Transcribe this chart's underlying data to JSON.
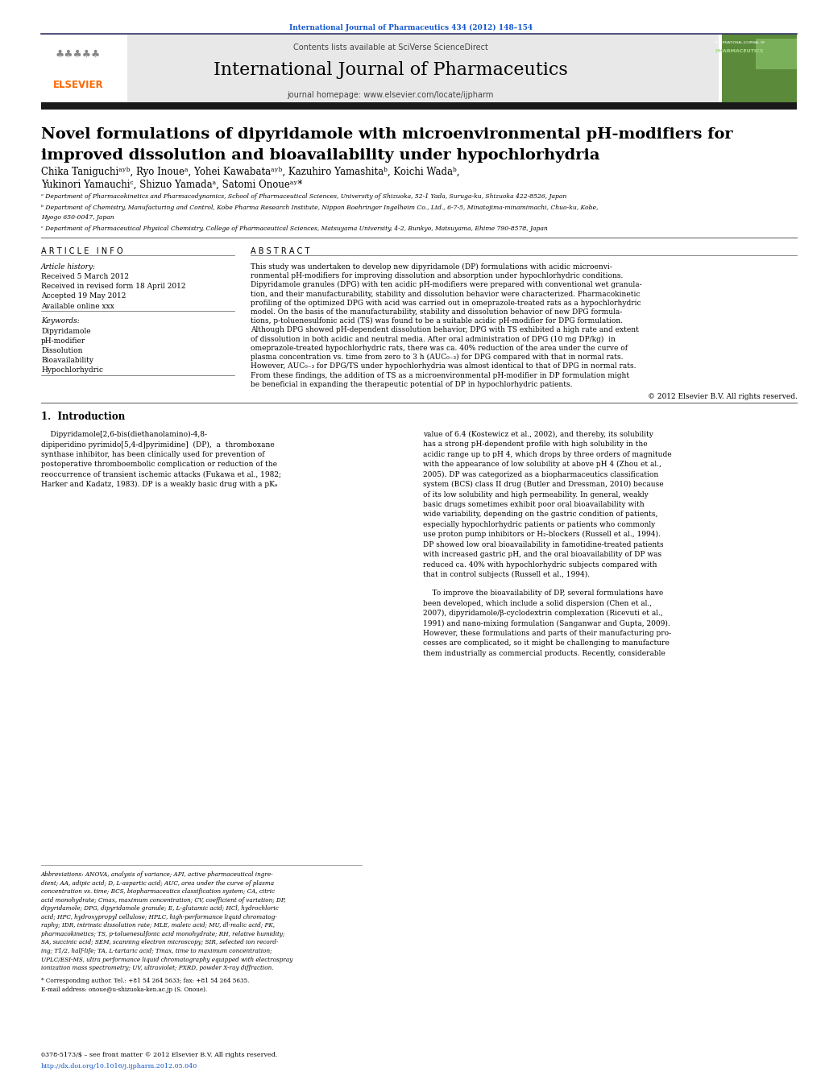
{
  "page_width": 10.2,
  "page_height": 13.51,
  "bg_color": "#ffffff",
  "top_journal_ref": "International Journal of Pharmaceutics 434 (2012) 148–154",
  "journal_name": "International Journal of Pharmaceutics",
  "contents_text": "Contents lists available at SciVerse ScienceDirect",
  "homepage_text": "journal homepage: www.elsevier.com/locate/ijpharm",
  "article_title_line1": "Novel formulations of dipyridamole with microenvironmental pH-modifiers for",
  "article_title_line2": "improved dissolution and bioavailability under hypochlorhydria",
  "authors": "Chika Taniguchiᵃʸᵇ, Ryo Inoueᵃ, Yohei Kawabataᵃʸᵇ, Kazuhiro Yamashitaᵇ, Koichi Wadaᵇ,",
  "authors2": "Yukinori Yamauchiᶜ, Shizuo Yamadaᵃ, Satomi Onoueᵃʸ*",
  "affil_a": "ᵃ Department of Pharmacokinetics and Pharmacodynamics, School of Pharmaceutical Sciences, University of Shizuoka, 52-1 Yada, Suruga-ku, Shizuoka 422-8526, Japan",
  "affil_b": "ᵇ Department of Chemistry, Manufacturing and Control, Kobe Pharma Research Institute, Nippon Boehringer Ingelheim Co., Ltd., 6-7-5, Minatojima-minamimachi, Chuo-ku, Kobe,",
  "affil_b2": "Hyogo 650-0047, Japan",
  "affil_c": "ᶜ Department of Pharmaceutical Physical Chemistry, College of Pharmaceutical Sciences, Matsuyama University, 4-2, Bunkyo, Matsuyama, Ehime 790-8578, Japan",
  "article_info_header": "A R T I C L E   I N F O",
  "abstract_header": "A B S T R A C T",
  "article_history_label": "Article history:",
  "received1": "Received 5 March 2012",
  "received2": "Received in revised form 18 April 2012",
  "accepted": "Accepted 19 May 2012",
  "available": "Available online xxx",
  "keywords_label": "Keywords:",
  "keyword1": "Dipyridamole",
  "keyword2": "pH-modifier",
  "keyword3": "Dissolution",
  "keyword4": "Bioavailability",
  "keyword5": "Hypochlorhydric",
  "abstract_lines": [
    "This study was undertaken to develop new dipyridamole (DP) formulations with acidic microenvi-",
    "ronmental pH-modifiers for improving dissolution and absorption under hypochlorhydric conditions.",
    "Dipyridamole granules (DPG) with ten acidic pH-modifiers were prepared with conventional wet granula-",
    "tion, and their manufacturability, stability and dissolution behavior were characterized. Pharmacokinetic",
    "profiling of the optimized DPG with acid was carried out in omeprazole-treated rats as a hypochlorhydric",
    "model. On the basis of the manufacturability, stability and dissolution behavior of new DPG formula-",
    "tions, p-toluenesulfonic acid (TS) was found to be a suitable acidic pH-modifier for DPG formulation.",
    "Although DPG showed pH-dependent dissolution behavior, DPG with TS exhibited a high rate and extent",
    "of dissolution in both acidic and neutral media. After oral administration of DPG (10 mg DP/kg)  in",
    "omeprazole-treated hypochlorhydric rats, there was ca. 40% reduction of the area under the curve of",
    "plasma concentration vs. time from zero to 3 h (AUC₀₋₃) for DPG compared with that in normal rats.",
    "However, AUC₀₋₃ for DPG/TS under hypochlorhydria was almost identical to that of DPG in normal rats.",
    "From these findings, the addition of TS as a microenvironmental pH-modifier in DP formulation might",
    "be beneficial in expanding the therapeutic potential of DP in hypochlorhydric patients."
  ],
  "copyright": "© 2012 Elsevier B.V. All rights reserved.",
  "intro_header": "1.  Introduction",
  "intro_col1_lines": [
    "    Dipyridamole[2,6-bis(diethanolamino)-4,8-",
    "dipiperidino pyrimido[5,4-d]pyrimidine]  (DP),  a  thromboxane",
    "synthase inhibitor, has been clinically used for prevention of",
    "postoperative thromboembolic complication or reduction of the",
    "reoccurrence of transient ischemic attacks (Fukawa et al., 1982;",
    "Harker and Kadatz, 1983). DP is a weakly basic drug with a pKₐ"
  ],
  "intro_col2_lines": [
    "value of 6.4 (Kostewicz et al., 2002), and thereby, its solubility",
    "has a strong pH-dependent profile with high solubility in the",
    "acidic range up to pH 4, which drops by three orders of magnitude",
    "with the appearance of low solubility at above pH 4 (Zhou et al.,",
    "2005). DP was categorized as a biopharmaceutics classification",
    "system (BCS) class II drug (Butler and Dressman, 2010) because",
    "of its low solubility and high permeability. In general, weakly",
    "basic drugs sometimes exhibit poor oral bioavailability with",
    "wide variability, depending on the gastric condition of patients,",
    "especially hypochlorhydric patients or patients who commonly",
    "use proton pump inhibitors or H₂-blockers (Russell et al., 1994).",
    "DP showed low oral bioavailability in famotidine-treated patients",
    "with increased gastric pH, and the oral bioavailability of DP was",
    "reduced ca. 40% with hypochlorhydric subjects compared with",
    "that in control subjects (Russell et al., 1994)."
  ],
  "improve_col2_lines": [
    "    To improve the bioavailability of DP, several formulations have",
    "been developed, which include a solid dispersion (Chen et al.,",
    "2007), dipyridamole/β-cyclodextrin complexation (Ricevuti et al.,",
    "1991) and nano-mixing formulation (Sanganwar and Gupta, 2009).",
    "However, these formulations and parts of their manufacturing pro-",
    "cesses are complicated, so it might be challenging to manufacture",
    "them industrially as commercial products. Recently, considerable"
  ],
  "abbrev_lines": [
    "Abbreviations: ANOVA, analysis of variance; API, active pharmaceutical ingre-",
    "dient; AA, adipic acid; D, L-aspartic acid; AUC, area under the curve of plasma",
    "concentration vs. time; BCS, biopharmaceutics classification system; CA, citric",
    "acid monohydrate; Cmax, maximum concentration; CV, coefficient of variation; DP,",
    "dipyridamole; DPG, dipyridamole granule; E, L-glutamic acid; HCl, hydrochloric",
    "acid; HPC, hydroxypropyl cellulose; HPLC, high-performance liquid chromatog-",
    "raphy; IDR, intrinsic dissolution rate; MLE, maleic acid; MU, dl-malic acid; PK,",
    "pharmacokinetics; TS, p-toluenesulfonic acid monohydrate; RH, relative humidity;",
    "SA, succinic acid; SEM, scanning electron microscopy; SIR, selected ion record-",
    "ing; T1/2, half-life; TA, L-tartaric acid; Tmax, time to maximum concentration;",
    "UPLC/ESI-MS, ultra performance liquid chromatography equipped with electrospray",
    "ionization mass spectrometry; UV, ultraviolet; PXRD, powder X-ray diffraction."
  ],
  "corresp": "* Corresponding author. Tel.: +81 54 264 5633; fax: +81 54 264 5635.",
  "email": "E-mail address: onoue@u-shizuoka-ken.ac.jp (S. Onoue).",
  "issn": "0378-5173/$ – see front matter © 2012 Elsevier B.V. All rights reserved.",
  "doi": "http://dx.doi.org/10.1016/j.ijpharm.2012.05.040",
  "link_color": "#1155CC",
  "elsevier_orange": "#FF6600",
  "header_bg": "#e8e8e8",
  "dark_bar_color": "#1a1a1a",
  "header_line_color": "#333366"
}
